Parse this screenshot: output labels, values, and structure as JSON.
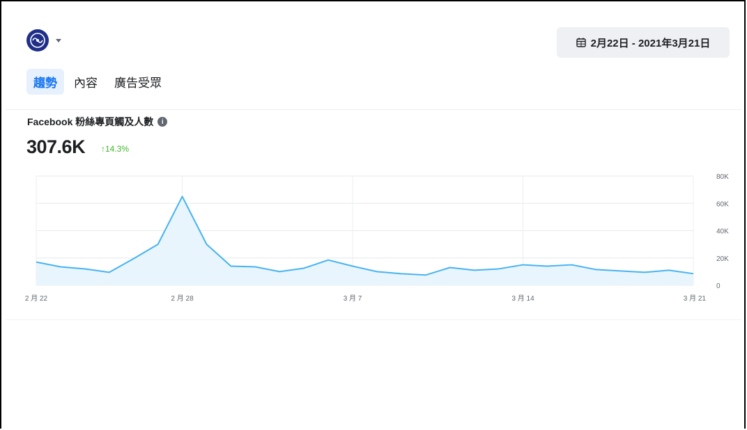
{
  "header": {
    "avatar_icon": "page-logo-icon",
    "dropdown_icon": "caret-down-icon",
    "date_range": "2月22日 - 2021年3月21日",
    "date_icon": "calendar-icon"
  },
  "tabs": [
    {
      "label": "趨勢",
      "active": true
    },
    {
      "label": "內容",
      "active": false
    },
    {
      "label": "廣告受眾",
      "active": false
    }
  ],
  "metric": {
    "title": "Facebook 粉絲專頁觸及人數",
    "info_icon": "info-icon",
    "value": "307.6K",
    "change": "↑14.3%",
    "change_color": "#42b72a"
  },
  "colors": {
    "accent": "#1877f2",
    "line": "#45b3f0",
    "area": "#e9f5fd"
  },
  "chart_data": {
    "type": "area",
    "x_tick_labels": [
      "2 月 22",
      "2 月 28",
      "3 月 7",
      "3 月 14",
      "3 月 21"
    ],
    "y_tick_labels": [
      "80K",
      "60K",
      "40K",
      "20K",
      "0"
    ],
    "ylim": [
      0,
      80000
    ],
    "grid": true,
    "x": [
      "2月22",
      "2月23",
      "2月24",
      "2月25",
      "2月26",
      "2月27",
      "2月28",
      "3月1",
      "3月2",
      "3月3",
      "3月4",
      "3月5",
      "3月6",
      "3月7",
      "3月8",
      "3月9",
      "3月10",
      "3月11",
      "3月12",
      "3月13",
      "3月14",
      "3月15",
      "3月16",
      "3月17",
      "3月18",
      "3月19",
      "3月20",
      "3月21"
    ],
    "values": [
      17000,
      13500,
      12000,
      9500,
      19500,
      30000,
      65000,
      30000,
      14000,
      13500,
      10000,
      12500,
      18500,
      14000,
      10000,
      8500,
      7500,
      13000,
      11000,
      12000,
      15000,
      14000,
      15000,
      11500,
      10500,
      9500,
      11000,
      8500
    ]
  }
}
